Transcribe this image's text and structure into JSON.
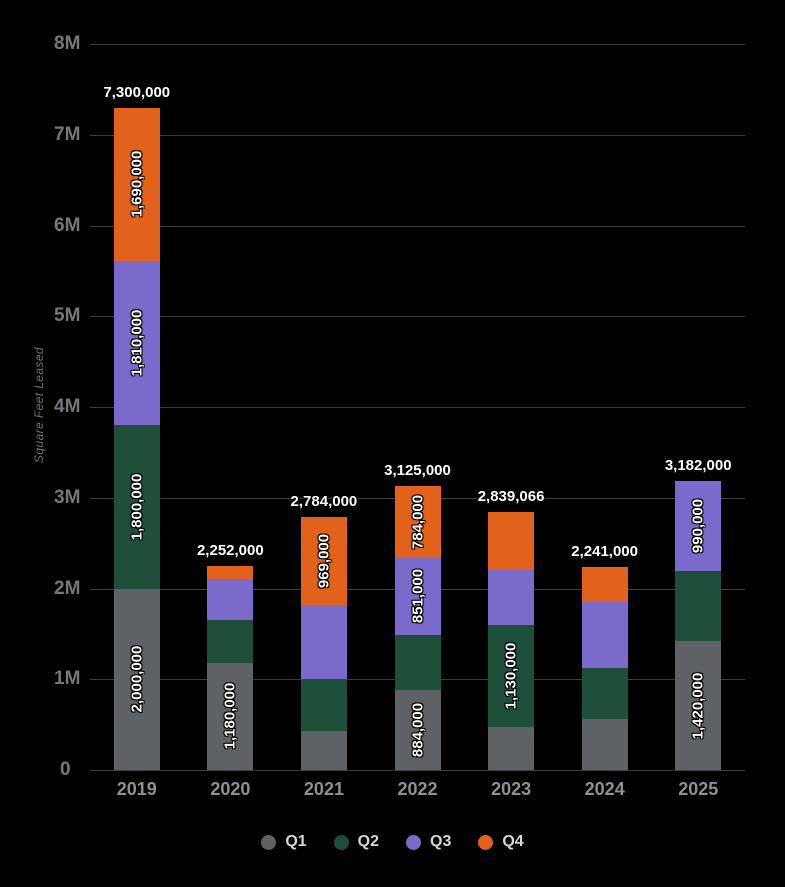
{
  "chart_data": {
    "type": "bar",
    "stacked": true,
    "title": "",
    "ylabel": "Square Feet Leased",
    "xlabel": "",
    "ylim": [
      0,
      8000000
    ],
    "yticks": [
      "8M",
      "7M",
      "6M",
      "5M",
      "4M",
      "3M",
      "2M",
      "1M",
      "0"
    ],
    "grid": true,
    "legend_position": "bottom",
    "categories": [
      "2019",
      "2020",
      "2021",
      "2022",
      "2023",
      "2024",
      "2025"
    ],
    "series": [
      {
        "name": "Q1",
        "color": "#5e6165",
        "values": [
          2000000,
          1180000,
          430000,
          884000,
          470066,
          560000,
          1420000
        ],
        "labels": [
          "2,000,000",
          "1,180,000",
          null,
          "884,000",
          null,
          null,
          "1,420,000"
        ]
      },
      {
        "name": "Q2",
        "color": "#1e4f3a",
        "values": [
          1800000,
          470000,
          570000,
          606000,
          1130000,
          560000,
          772000
        ],
        "labels": [
          "1,800,000",
          null,
          null,
          null,
          "1,130,000",
          null,
          null
        ]
      },
      {
        "name": "Q3",
        "color": "#7c69cc",
        "values": [
          1810000,
          460000,
          815000,
          851000,
          600000,
          730000,
          990000
        ],
        "labels": [
          "1,810,000",
          null,
          null,
          "851,000",
          null,
          null,
          "990,000"
        ]
      },
      {
        "name": "Q4",
        "color": "#e2611b",
        "values": [
          1690000,
          142000,
          969000,
          784000,
          639000,
          391000,
          0
        ],
        "labels": [
          "1,690,000",
          null,
          "969,000",
          "784,000",
          null,
          null,
          null
        ]
      }
    ],
    "totals": [
      "7,300,000",
      "2,252,000",
      "2,784,000",
      "3,125,000",
      "2,839,066",
      "2,241,000",
      "3,182,000"
    ]
  },
  "colors": {
    "background": "#000000",
    "gridline": "#3b3e41",
    "tick_label": "#75787b",
    "year_label": "#8e9093",
    "value_label": "#ffffff",
    "legend_label": "#d6d7d8"
  }
}
